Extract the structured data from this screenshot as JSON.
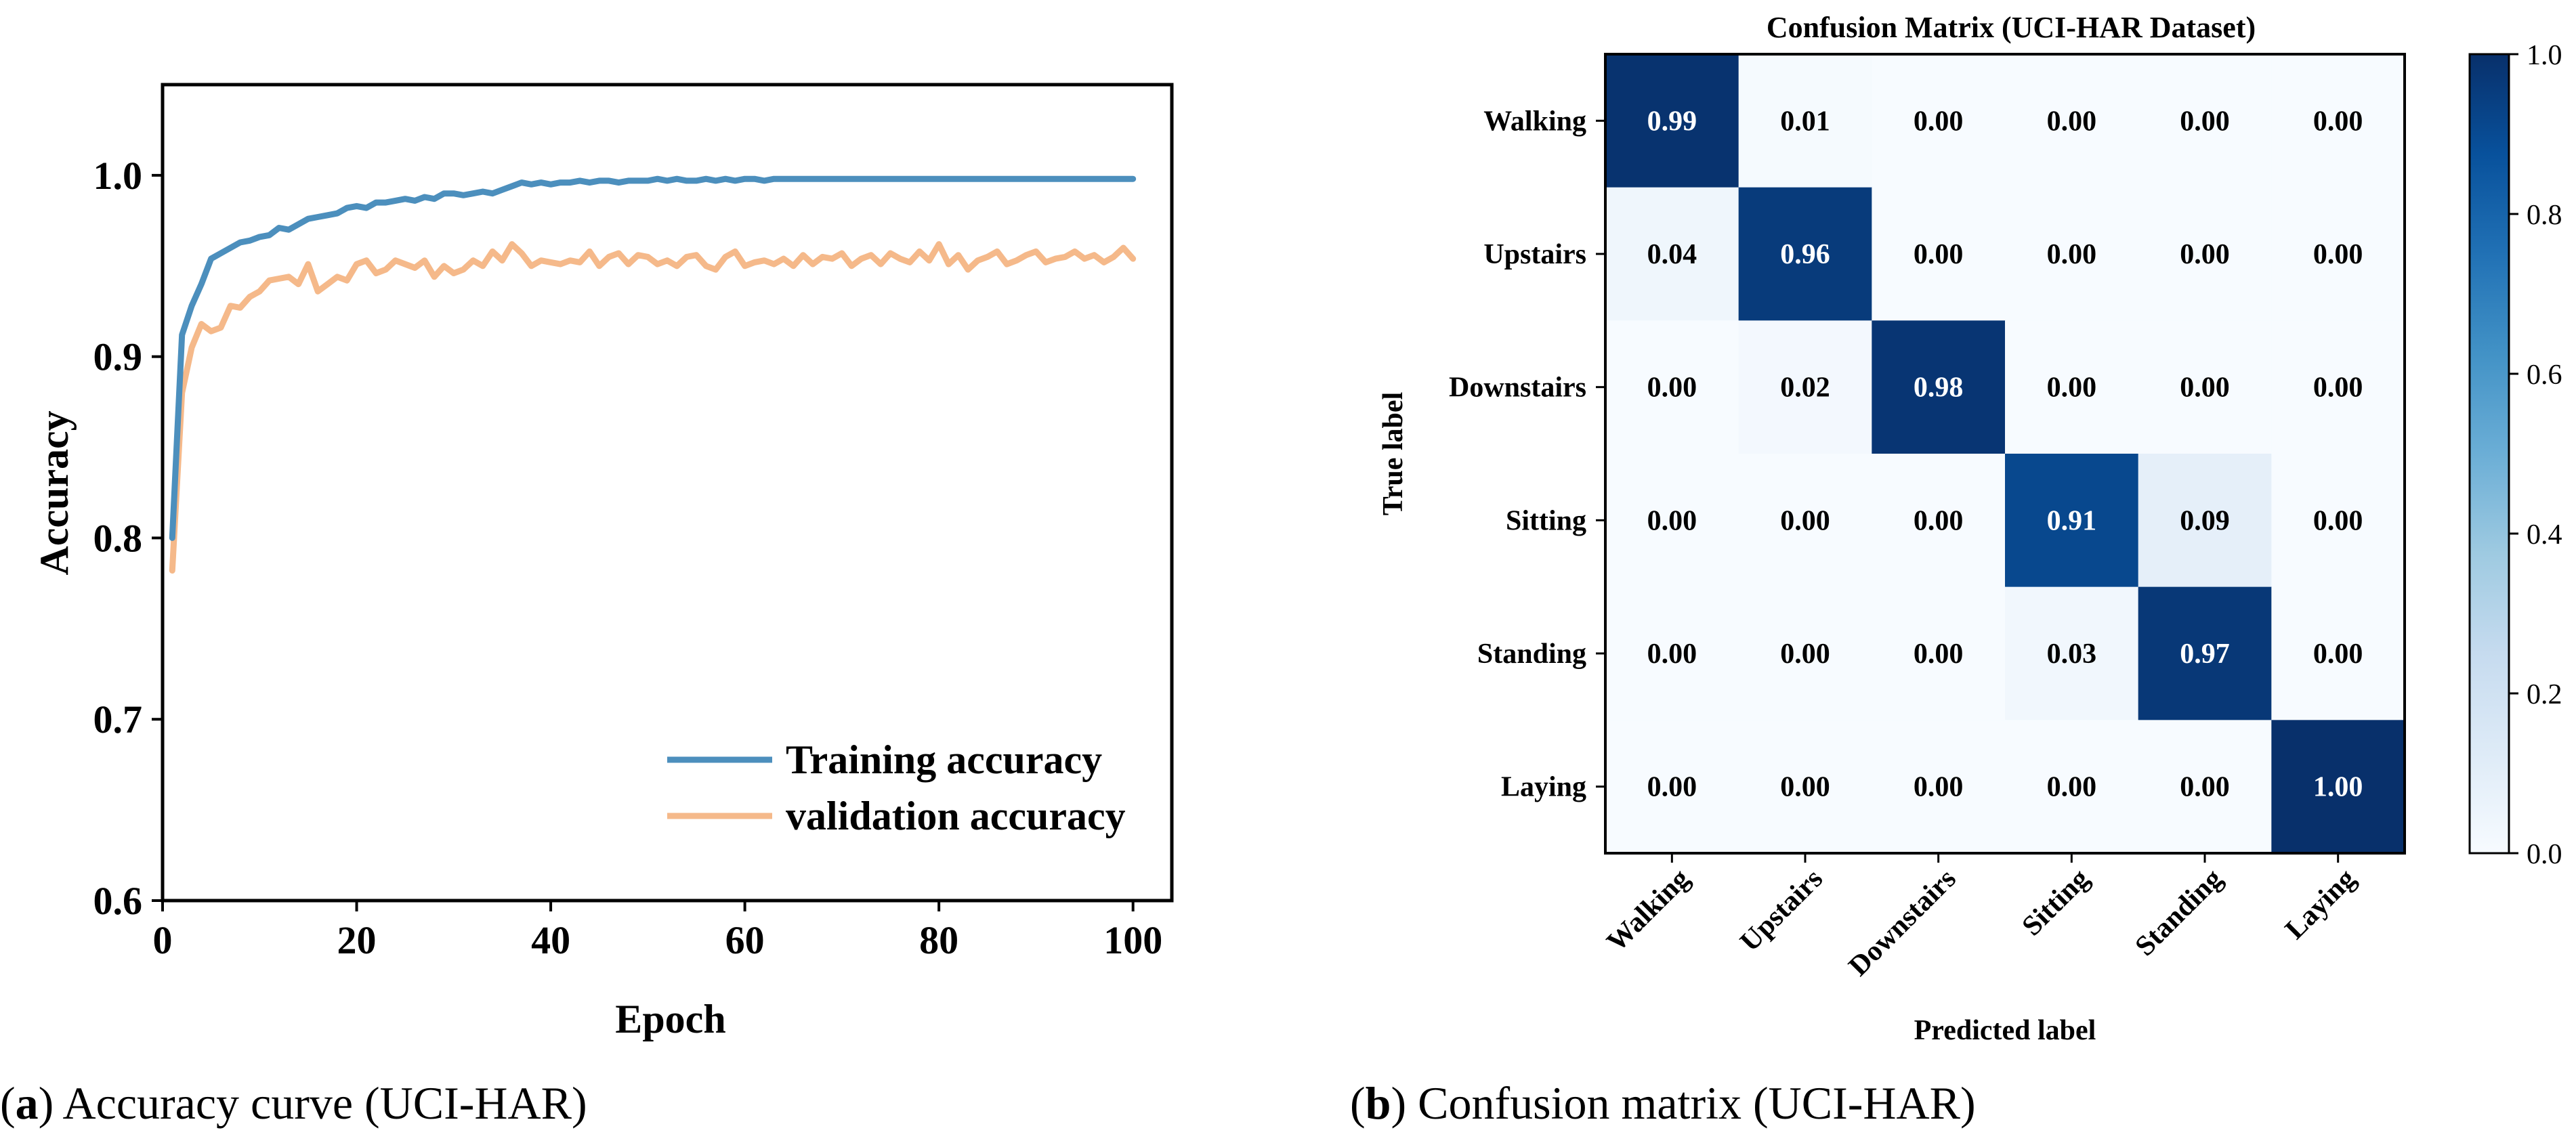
{
  "captions": {
    "a_label": "a",
    "a_text": ") Accuracy curve (UCI-HAR)",
    "b_label": "b",
    "b_text": ") Confusion matrix (UCI-HAR)"
  },
  "colors": {
    "training": "#4c8fbd",
    "validation": "#f5b98a",
    "cmap_low": "#f7fbff",
    "cmap_high": "#08306b"
  },
  "chart_data": [
    {
      "type": "line",
      "title": "",
      "xlabel": "Epoch",
      "ylabel": "Accuracy",
      "xlim": [
        0,
        104
      ],
      "ylim": [
        0.6,
        1.05
      ],
      "xticks": [
        0,
        20,
        40,
        60,
        80,
        100
      ],
      "yticks": [
        0.6,
        0.7,
        0.8,
        0.9,
        1.0
      ],
      "xtick_labels": [
        "0",
        "20",
        "40",
        "60",
        "80",
        "100"
      ],
      "ytick_labels": [
        "0.6",
        "0.7",
        "0.8",
        "0.9",
        "1.0"
      ],
      "legend_position": "lower-right",
      "x": [
        1,
        2,
        3,
        4,
        5,
        6,
        7,
        8,
        9,
        10,
        11,
        12,
        13,
        14,
        15,
        16,
        17,
        18,
        19,
        20,
        21,
        22,
        23,
        24,
        25,
        26,
        27,
        28,
        29,
        30,
        31,
        32,
        33,
        34,
        35,
        36,
        37,
        38,
        39,
        40,
        41,
        42,
        43,
        44,
        45,
        46,
        47,
        48,
        49,
        50,
        51,
        52,
        53,
        54,
        55,
        56,
        57,
        58,
        59,
        60,
        61,
        62,
        63,
        64,
        65,
        66,
        67,
        68,
        69,
        70,
        71,
        72,
        73,
        74,
        75,
        76,
        77,
        78,
        79,
        80,
        81,
        82,
        83,
        84,
        85,
        86,
        87,
        88,
        89,
        90,
        91,
        92,
        93,
        94,
        95,
        96,
        97,
        98,
        99,
        100
      ],
      "series": [
        {
          "name": "Training accuracy",
          "values": [
            0.8,
            0.912,
            0.928,
            0.94,
            0.954,
            0.957,
            0.96,
            0.963,
            0.964,
            0.966,
            0.967,
            0.971,
            0.97,
            0.973,
            0.976,
            0.977,
            0.978,
            0.979,
            0.982,
            0.983,
            0.982,
            0.985,
            0.985,
            0.986,
            0.987,
            0.986,
            0.988,
            0.987,
            0.99,
            0.99,
            0.989,
            0.99,
            0.991,
            0.99,
            0.992,
            0.994,
            0.996,
            0.995,
            0.996,
            0.995,
            0.996,
            0.996,
            0.997,
            0.996,
            0.997,
            0.997,
            0.996,
            0.997,
            0.997,
            0.997,
            0.998,
            0.997,
            0.998,
            0.997,
            0.997,
            0.998,
            0.997,
            0.998,
            0.997,
            0.998,
            0.998,
            0.997,
            0.998,
            0.998,
            0.998,
            0.998,
            0.998,
            0.998,
            0.998,
            0.998,
            0.998,
            0.998,
            0.998,
            0.998,
            0.998,
            0.998,
            0.998,
            0.998,
            0.998,
            0.998,
            0.998,
            0.998,
            0.998,
            0.998,
            0.998,
            0.998,
            0.998,
            0.998,
            0.998,
            0.998,
            0.998,
            0.998,
            0.998,
            0.998,
            0.998,
            0.998,
            0.998,
            0.998,
            0.998,
            0.998
          ]
        },
        {
          "name": "validation accuracy",
          "values": [
            0.782,
            0.88,
            0.905,
            0.918,
            0.914,
            0.916,
            0.928,
            0.927,
            0.933,
            0.936,
            0.942,
            0.943,
            0.944,
            0.94,
            0.951,
            0.936,
            0.94,
            0.944,
            0.942,
            0.951,
            0.953,
            0.946,
            0.948,
            0.953,
            0.951,
            0.949,
            0.953,
            0.944,
            0.95,
            0.946,
            0.948,
            0.953,
            0.95,
            0.958,
            0.953,
            0.962,
            0.957,
            0.95,
            0.953,
            0.952,
            0.951,
            0.953,
            0.952,
            0.958,
            0.95,
            0.955,
            0.957,
            0.951,
            0.956,
            0.955,
            0.951,
            0.953,
            0.95,
            0.955,
            0.956,
            0.95,
            0.948,
            0.955,
            0.958,
            0.95,
            0.952,
            0.953,
            0.951,
            0.954,
            0.95,
            0.956,
            0.951,
            0.955,
            0.954,
            0.957,
            0.95,
            0.954,
            0.956,
            0.951,
            0.957,
            0.954,
            0.952,
            0.958,
            0.953,
            0.962,
            0.951,
            0.956,
            0.948,
            0.953,
            0.955,
            0.958,
            0.951,
            0.953,
            0.956,
            0.958,
            0.952,
            0.954,
            0.955,
            0.958,
            0.954,
            0.956,
            0.952,
            0.955,
            0.96,
            0.954
          ]
        }
      ]
    },
    {
      "type": "heatmap",
      "title": "Confusion Matrix (UCI-HAR Dataset)",
      "xlabel": "Predicted label",
      "ylabel": "True label",
      "row_labels": [
        "Walking",
        "Upstairs",
        "Downstairs",
        "Sitting",
        "Standing",
        "Laying"
      ],
      "col_labels": [
        "Walking",
        "Upstairs",
        "Downstairs",
        "Sitting",
        "Standing",
        "Laying"
      ],
      "values": [
        [
          0.99,
          0.01,
          0.0,
          0.0,
          0.0,
          0.0
        ],
        [
          0.04,
          0.96,
          0.0,
          0.0,
          0.0,
          0.0
        ],
        [
          0.0,
          0.02,
          0.98,
          0.0,
          0.0,
          0.0
        ],
        [
          0.0,
          0.0,
          0.0,
          0.91,
          0.09,
          0.0
        ],
        [
          0.0,
          0.0,
          0.0,
          0.03,
          0.97,
          0.0
        ],
        [
          0.0,
          0.0,
          0.0,
          0.0,
          0.0,
          1.0
        ]
      ],
      "cell_labels": [
        [
          "0.99",
          "0.01",
          "0.00",
          "0.00",
          "0.00",
          "0.00"
        ],
        [
          "0.04",
          "0.96",
          "0.00",
          "0.00",
          "0.00",
          "0.00"
        ],
        [
          "0.00",
          "0.02",
          "0.98",
          "0.00",
          "0.00",
          "0.00"
        ],
        [
          "0.00",
          "0.00",
          "0.00",
          "0.91",
          "0.09",
          "0.00"
        ],
        [
          "0.00",
          "0.00",
          "0.00",
          "0.03",
          "0.97",
          "0.00"
        ],
        [
          "0.00",
          "0.00",
          "0.00",
          "0.00",
          "0.00",
          "1.00"
        ]
      ],
      "colorbar": {
        "range": [
          0.0,
          1.0
        ],
        "ticks": [
          0.0,
          0.2,
          0.4,
          0.6,
          0.8,
          1.0
        ],
        "tick_labels": [
          "0.0",
          "0.2",
          "0.4",
          "0.6",
          "0.8",
          "1.0"
        ]
      }
    }
  ]
}
